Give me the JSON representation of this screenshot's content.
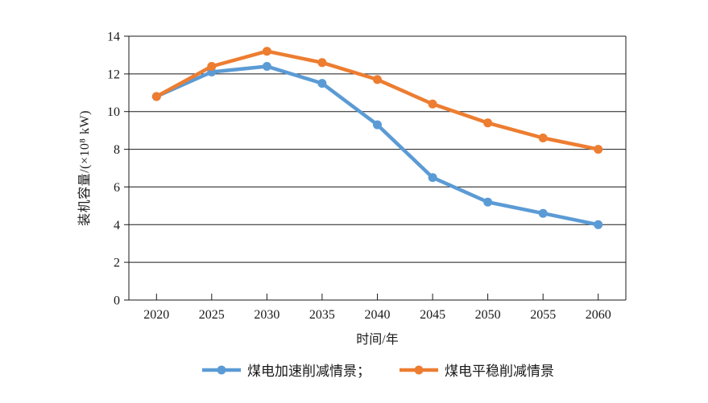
{
  "chart_data": {
    "type": "line",
    "title": "",
    "categories": [
      "2020",
      "2025",
      "2030",
      "2035",
      "2040",
      "2045",
      "2050",
      "2055",
      "2060"
    ],
    "series": [
      {
        "name": "煤电加速削减情景",
        "color": "#5B9BD5",
        "values": [
          10.8,
          12.1,
          12.4,
          11.5,
          9.3,
          6.5,
          5.2,
          4.6,
          4.0
        ]
      },
      {
        "name": "煤电平稳削减情景",
        "color": "#ED7D31",
        "values": [
          10.8,
          12.4,
          13.2,
          12.6,
          11.7,
          10.4,
          9.4,
          8.6,
          8.0
        ]
      }
    ],
    "legend_labels": [
      "煤电加速削减情景；",
      "煤电平稳削减情景"
    ],
    "xlabel": "时间/年",
    "ylabel": "装机容量/(×10⁸ kW)",
    "ylim": [
      0,
      14
    ],
    "yticks": [
      0,
      2,
      4,
      6,
      8,
      10,
      12,
      14
    ],
    "grid": true,
    "legend_position": "bottom"
  },
  "colors": {
    "background": "#ffffff",
    "axis": "#1a1a1a",
    "series_blue": "#5B9BD5",
    "series_orange": "#ED7D31"
  }
}
